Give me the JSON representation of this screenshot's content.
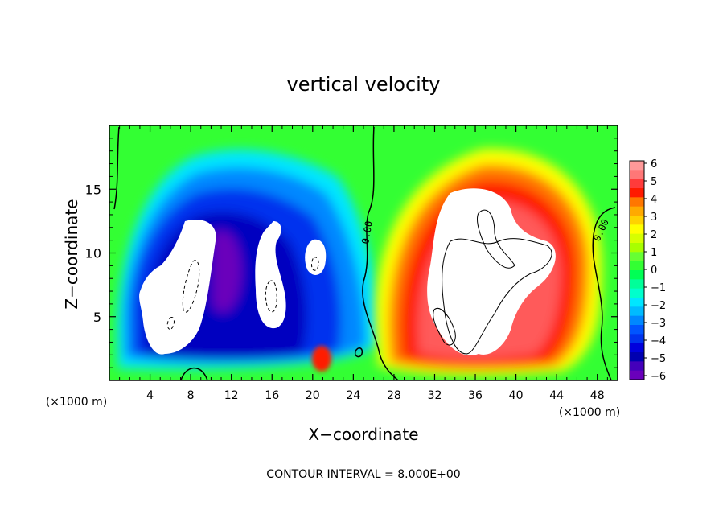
{
  "title": "vertical velocity",
  "footer": "CONTOUR INTERVAL = 8.000E+00",
  "chart_data": {
    "type": "heatmap",
    "title": "vertical velocity",
    "xlabel": "X−coordinate",
    "ylabel": "Z−coordinate",
    "x_unit_left": "(×1000 m)",
    "x_unit_right": "(×1000 m)",
    "xlim": [
      0,
      50
    ],
    "ylim": [
      0,
      20
    ],
    "xticks": [
      4,
      8,
      12,
      16,
      20,
      24,
      28,
      32,
      36,
      40,
      44,
      48
    ],
    "yticks": [
      5,
      10,
      15
    ],
    "colorbar": {
      "ticks": [
        6,
        5,
        4,
        3,
        2,
        1,
        0,
        -1,
        -2,
        -3,
        -4,
        -5,
        -6
      ],
      "tick_labels": [
        "6",
        "5",
        "4",
        "3",
        "2",
        "1",
        "0",
        "−1",
        "−2",
        "−3",
        "−4",
        "−5",
        "−6"
      ],
      "colors": [
        "#ff9999",
        "#ff7777",
        "#ff3b3b",
        "#ff1a00",
        "#ff7700",
        "#ffaa00",
        "#ffd200",
        "#ffff00",
        "#d6ff00",
        "#a8ff00",
        "#66ff33",
        "#33ff33",
        "#00ff55",
        "#00ff99",
        "#00ffcc",
        "#00e6ff",
        "#00bbff",
        "#0088ff",
        "#0055ff",
        "#0033ee",
        "#0000dd",
        "#0000b0",
        "#4400bb",
        "#6a00bb"
      ]
    },
    "contour_labels": [
      "0.00",
      "0.00"
    ],
    "updraft_cores": [
      {
        "x": 36,
        "z": 9,
        "w": 16
      },
      {
        "x": 21,
        "z": 1.5,
        "w": 6
      }
    ],
    "downdraft_cores": [
      {
        "x": 7,
        "z": 6,
        "w": -10
      },
      {
        "x": 15,
        "z": 8,
        "w": -9
      },
      {
        "x": 19.5,
        "z": 9,
        "w": -7
      }
    ]
  }
}
